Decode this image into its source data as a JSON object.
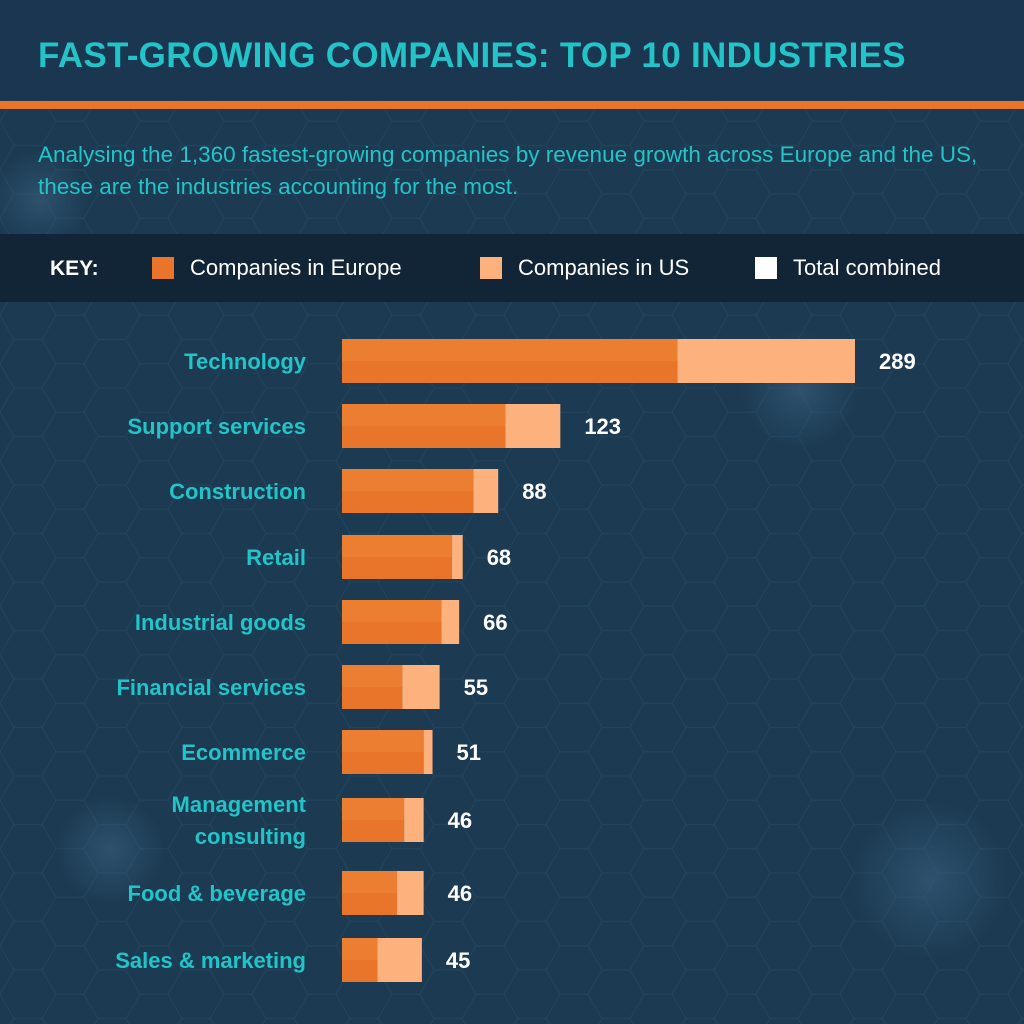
{
  "title": "FAST-GROWING COMPANIES: TOP 10 INDUSTRIES",
  "subtitle": "Analysing the 1,360 fastest-growing companies by revenue growth across Europe and the US, these are the industries accounting for the most.",
  "key": {
    "label": "KEY:",
    "europe": "Companies in Europe",
    "us": "Companies in US",
    "total": "Total combined"
  },
  "colors": {
    "background": "#1c3a52",
    "title": "#23c4c8",
    "accent_rule": "#e8752a",
    "europe": "#e8752a",
    "us": "#fdb27e",
    "total": "#ffffff"
  },
  "chart_data": {
    "type": "bar",
    "orientation": "horizontal",
    "stacked": true,
    "categories": [
      [
        "Technology"
      ],
      [
        "Support services"
      ],
      [
        "Construction"
      ],
      [
        "Retail"
      ],
      [
        "Industrial goods"
      ],
      [
        "Financial services"
      ],
      [
        "Ecommerce"
      ],
      [
        "Management",
        "consulting"
      ],
      [
        "Food & beverage"
      ],
      [
        "Sales & marketing"
      ]
    ],
    "series": [
      {
        "name": "Companies in Europe",
        "values": [
          189,
          92,
          74,
          62,
          56,
          34,
          46,
          35,
          31,
          20
        ]
      },
      {
        "name": "Companies in US",
        "values": [
          100,
          31,
          14,
          6,
          10,
          21,
          5,
          11,
          15,
          25
        ]
      }
    ],
    "totals": [
      289,
      123,
      88,
      68,
      66,
      55,
      51,
      46,
      46,
      45
    ],
    "xlim": [
      0,
      289
    ],
    "legend": "top",
    "grid": false
  }
}
